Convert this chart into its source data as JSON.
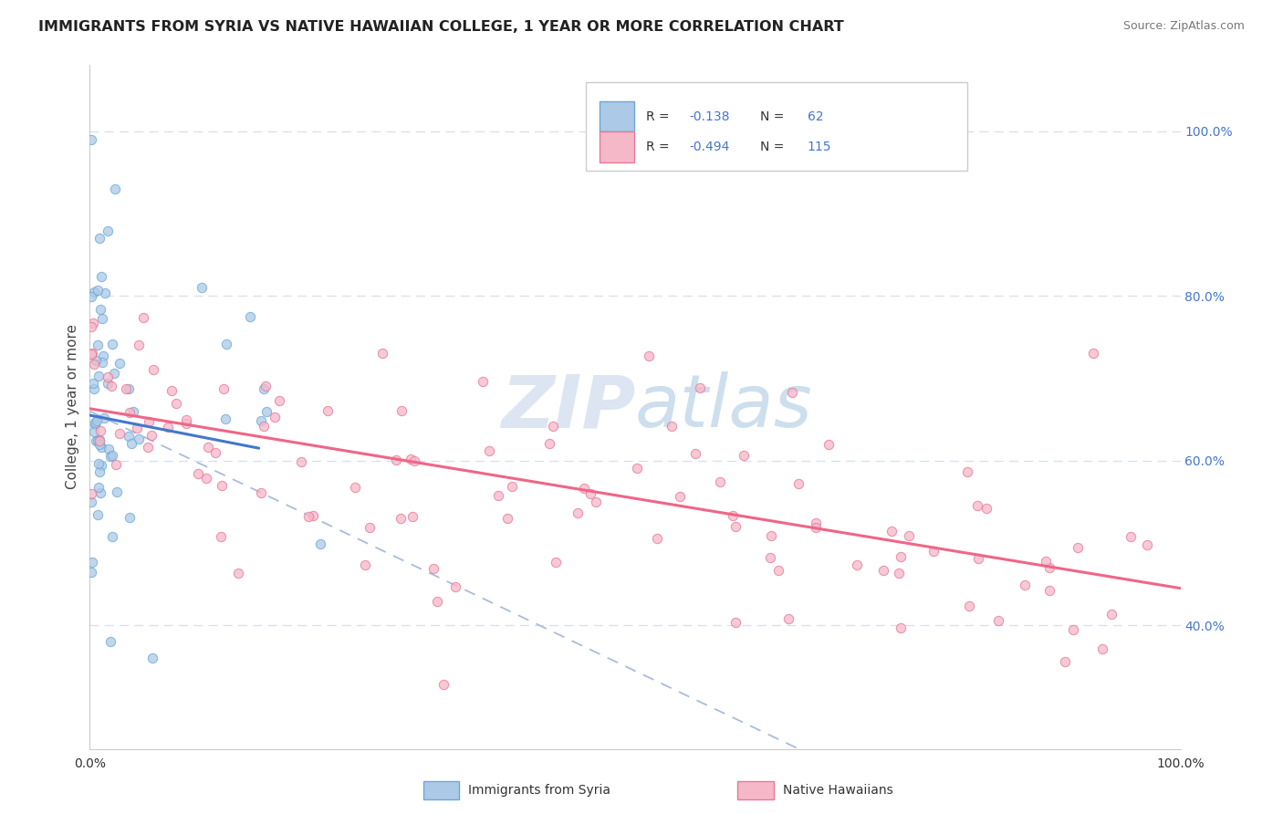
{
  "title": "IMMIGRANTS FROM SYRIA VS NATIVE HAWAIIAN COLLEGE, 1 YEAR OR MORE CORRELATION CHART",
  "source_text": "Source: ZipAtlas.com",
  "ylabel": "College, 1 year or more",
  "xlim": [
    0.0,
    1.0
  ],
  "ylim": [
    0.25,
    1.08
  ],
  "x_tick_labels": [
    "0.0%",
    "100.0%"
  ],
  "y_tick_labels_right": [
    "40.0%",
    "60.0%",
    "80.0%",
    "100.0%"
  ],
  "y_ticks_right": [
    0.4,
    0.6,
    0.8,
    1.0
  ],
  "legend1_R": "-0.138",
  "legend1_N": "62",
  "legend2_R": "-0.494",
  "legend2_N": "115",
  "color_syria_fill": "#adc9e8",
  "color_syria_edge": "#6aaad4",
  "color_hawaii_fill": "#f5b8c8",
  "color_hawaii_edge": "#e87898",
  "color_line_syria": "#4477cc",
  "color_line_hawaii": "#ee6688",
  "color_dashed": "#aabbdd",
  "watermark_color": "#c5d5e8",
  "background_color": "#ffffff",
  "grid_color": "#d8dff0",
  "tick_color": "#4477cc",
  "syria_line_x0": 0.0,
  "syria_line_y0": 0.655,
  "syria_line_x1": 0.155,
  "syria_line_y1": 0.615,
  "hawaii_line_x0": 0.0,
  "hawaii_line_y0": 0.663,
  "hawaii_line_x1": 1.0,
  "hawaii_line_y1": 0.445,
  "dashed_line_x0": 0.0,
  "dashed_line_y0": 0.66,
  "dashed_line_x1": 0.65,
  "dashed_line_y1": 0.25
}
